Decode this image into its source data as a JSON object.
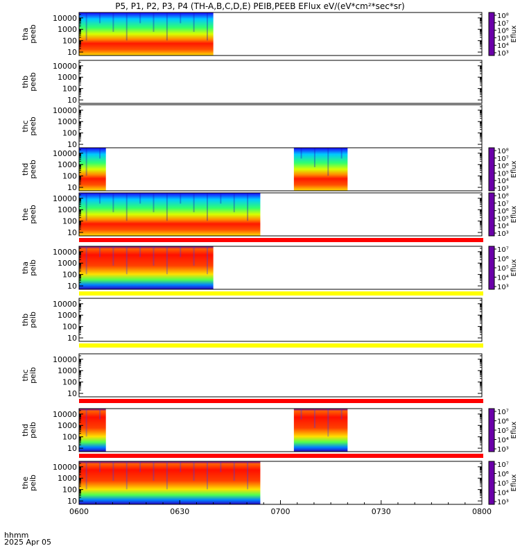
{
  "header": {
    "title": "P5, P1, P2, P3, P4 (TH-A,B,C,D,E) PEIB,PEEB EFlux eV/(eV*cm²*sec*sr)"
  },
  "footer": {
    "time_label": "hhmm",
    "date_label": "2025 Apr 05"
  },
  "chart_data": {
    "type": "heatmap",
    "x_axis": {
      "range": [
        "0600",
        "0800"
      ],
      "ticks": [
        "0600",
        "0630",
        "0700",
        "0730",
        "0800"
      ]
    },
    "y_axis": {
      "scale": "log",
      "range": [
        5,
        30000
      ],
      "ticks": [
        "10",
        "100",
        "1000",
        "10000"
      ]
    },
    "colorbar": {
      "label": "Eflux",
      "colors": [
        "#6a00a8",
        "#1a00ff",
        "#0080ff",
        "#00e0ff",
        "#00ff60",
        "#c0ff00",
        "#ffff00",
        "#ff9000",
        "#ff0000"
      ]
    },
    "panels": [
      {
        "ylabel": [
          "tha",
          "peeb"
        ],
        "coverage": [
          [
            0,
            40
          ]
        ],
        "colorbar_ticks": [
          "10³",
          "10⁴",
          "10⁵",
          "10⁶",
          "10⁷",
          "10⁸"
        ],
        "flag_bar": null
      },
      {
        "ylabel": [
          "thb",
          "peeb"
        ],
        "coverage": [],
        "colorbar_ticks": [],
        "flag_bar": null
      },
      {
        "ylabel": [
          "thc",
          "peeb"
        ],
        "coverage": [],
        "colorbar_ticks": [],
        "flag_bar": null
      },
      {
        "ylabel": [
          "thd",
          "peeb"
        ],
        "coverage": [
          [
            0,
            8
          ],
          [
            64,
            80
          ]
        ],
        "colorbar_ticks": [
          "10³",
          "10⁴",
          "10⁵",
          "10⁶",
          "10⁷",
          "10⁸"
        ],
        "flag_bar": null
      },
      {
        "ylabel": [
          "the",
          "peeb"
        ],
        "coverage": [
          [
            0,
            54
          ]
        ],
        "colorbar_ticks": [
          "10³",
          "10⁴",
          "10⁵",
          "10⁶",
          "10⁷",
          "10⁸"
        ],
        "flag_bar": "#ff0000"
      },
      {
        "ylabel": [
          "tha",
          "peib"
        ],
        "coverage": [
          [
            0,
            40
          ]
        ],
        "colorbar_ticks": [
          "10³",
          "10⁴",
          "10⁵",
          "10⁶",
          "10⁷"
        ],
        "flag_bar": "#ffff00"
      },
      {
        "ylabel": [
          "thb",
          "peib"
        ],
        "coverage": [],
        "colorbar_ticks": [],
        "flag_bar": "#ffff00"
      },
      {
        "ylabel": [
          "thc",
          "peib"
        ],
        "coverage": [],
        "colorbar_ticks": [],
        "flag_bar": "#ff0000"
      },
      {
        "ylabel": [
          "thd",
          "peib"
        ],
        "coverage": [
          [
            0,
            8
          ],
          [
            64,
            80
          ]
        ],
        "colorbar_ticks": [
          "10³",
          "10⁴",
          "10⁵",
          "10⁶",
          "10⁷"
        ],
        "flag_bar": "#ff0000"
      },
      {
        "ylabel": [
          "the",
          "peib"
        ],
        "coverage": [
          [
            0,
            54
          ]
        ],
        "colorbar_ticks": [
          "10³",
          "10⁴",
          "10⁵",
          "10⁶",
          "10⁷"
        ],
        "flag_bar": null
      }
    ]
  }
}
